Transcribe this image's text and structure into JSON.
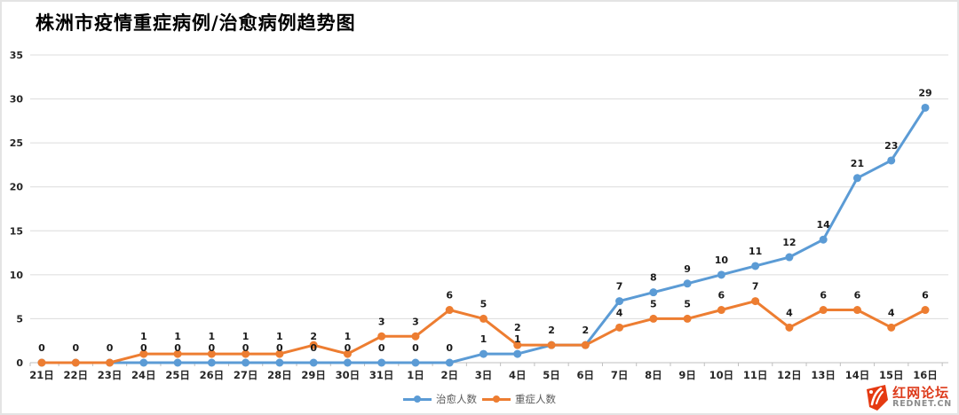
{
  "title": "株洲市疫情重症病例/治愈病例趋势图",
  "legend": {
    "items": [
      {
        "label": "治愈人数",
        "color": "#5B9BD5"
      },
      {
        "label": "重症人数",
        "color": "#ED7D31"
      }
    ]
  },
  "watermark": {
    "name": "红网论坛",
    "domain": "REDNET.CN",
    "logo_color": "#e53a12"
  },
  "colors": {
    "cured_line": "#5B9BD5",
    "severe_line": "#ED7D31",
    "gridline": "#dcdcdc",
    "axis_line": "#bfbfbf",
    "tick_text": "#262626",
    "data_label": "#1a1a1a"
  },
  "chart_data": {
    "type": "line",
    "title": "株洲市疫情重症病例/治愈病例趋势图",
    "categories": [
      "21日",
      "22日",
      "23日",
      "24日",
      "25日",
      "26日",
      "27日",
      "28日",
      "29日",
      "30日",
      "31日",
      "1日",
      "2日",
      "3日",
      "4日",
      "5日",
      "6日",
      "7日",
      "8日",
      "9日",
      "10日",
      "11日",
      "12日",
      "13日",
      "14日",
      "15日",
      "16日"
    ],
    "series": [
      {
        "name": "治愈人数",
        "color": "#5B9BD5",
        "values": [
          0,
          0,
          0,
          0,
          0,
          0,
          0,
          0,
          0,
          0,
          0,
          0,
          0,
          1,
          1,
          2,
          2,
          7,
          8,
          9,
          10,
          11,
          12,
          14,
          21,
          23,
          29
        ]
      },
      {
        "name": "重症人数",
        "color": "#ED7D31",
        "values": [
          0,
          0,
          0,
          1,
          1,
          1,
          1,
          1,
          2,
          1,
          3,
          3,
          6,
          5,
          2,
          2,
          2,
          4,
          5,
          5,
          6,
          7,
          4,
          6,
          6,
          4,
          6
        ]
      }
    ],
    "xlabel": "",
    "ylabel": "",
    "ylim": [
      0,
      35
    ],
    "ytick_step": 5,
    "grid": true,
    "legend_position": "bottom",
    "data_labels": true
  }
}
